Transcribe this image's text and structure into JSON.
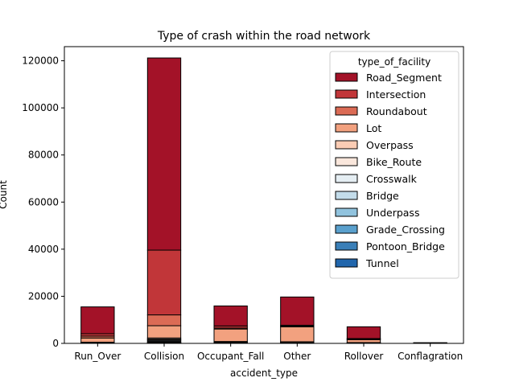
{
  "chart_data": {
    "type": "bar",
    "stacked": true,
    "title": "Type of crash within the road network",
    "xlabel": "accident_type",
    "ylabel": "Count",
    "ylim": [
      0,
      126000
    ],
    "yticks": [
      0,
      20000,
      40000,
      60000,
      80000,
      100000,
      120000
    ],
    "grid": false,
    "legend": {
      "title": "type_of_facility",
      "position": "top-right"
    },
    "categories": [
      "Run_Over",
      "Collision",
      "Occupant_Fall",
      "Other",
      "Rollover",
      "Conflagration"
    ],
    "series": [
      {
        "name": "Tunnel",
        "color": "#2166ac",
        "values": [
          0,
          150,
          0,
          0,
          0,
          0
        ]
      },
      {
        "name": "Pontoon_Bridge",
        "color": "#3a7fb8",
        "values": [
          0,
          100,
          0,
          0,
          0,
          0
        ]
      },
      {
        "name": "Grade_Crossing",
        "color": "#5aa0cd",
        "values": [
          0,
          150,
          0,
          0,
          0,
          0
        ]
      },
      {
        "name": "Underpass",
        "color": "#91c3de",
        "values": [
          0,
          300,
          0,
          0,
          0,
          0
        ]
      },
      {
        "name": "Bridge",
        "color": "#c3dcea",
        "values": [
          50,
          400,
          100,
          100,
          50,
          0
        ]
      },
      {
        "name": "Crosswalk",
        "color": "#e5eef3",
        "values": [
          100,
          400,
          200,
          100,
          50,
          0
        ]
      },
      {
        "name": "Bike_Route",
        "color": "#fae7dc",
        "values": [
          100,
          300,
          150,
          100,
          100,
          0
        ]
      },
      {
        "name": "Overpass",
        "color": "#fbccb4",
        "values": [
          250,
          500,
          350,
          400,
          150,
          0
        ]
      },
      {
        "name": "Lot",
        "color": "#f2a17f",
        "values": [
          1800,
          5200,
          5300,
          6300,
          1200,
          100
        ]
      },
      {
        "name": "Roundabout",
        "color": "#db6b55",
        "values": [
          800,
          4600,
          400,
          300,
          300,
          0
        ]
      },
      {
        "name": "Intersection",
        "color": "#c13639",
        "values": [
          1000,
          27500,
          900,
          400,
          200,
          0
        ]
      },
      {
        "name": "Road_Segment",
        "color": "#a31228",
        "values": [
          11400,
          81600,
          8500,
          12000,
          5000,
          200
        ]
      }
    ]
  }
}
